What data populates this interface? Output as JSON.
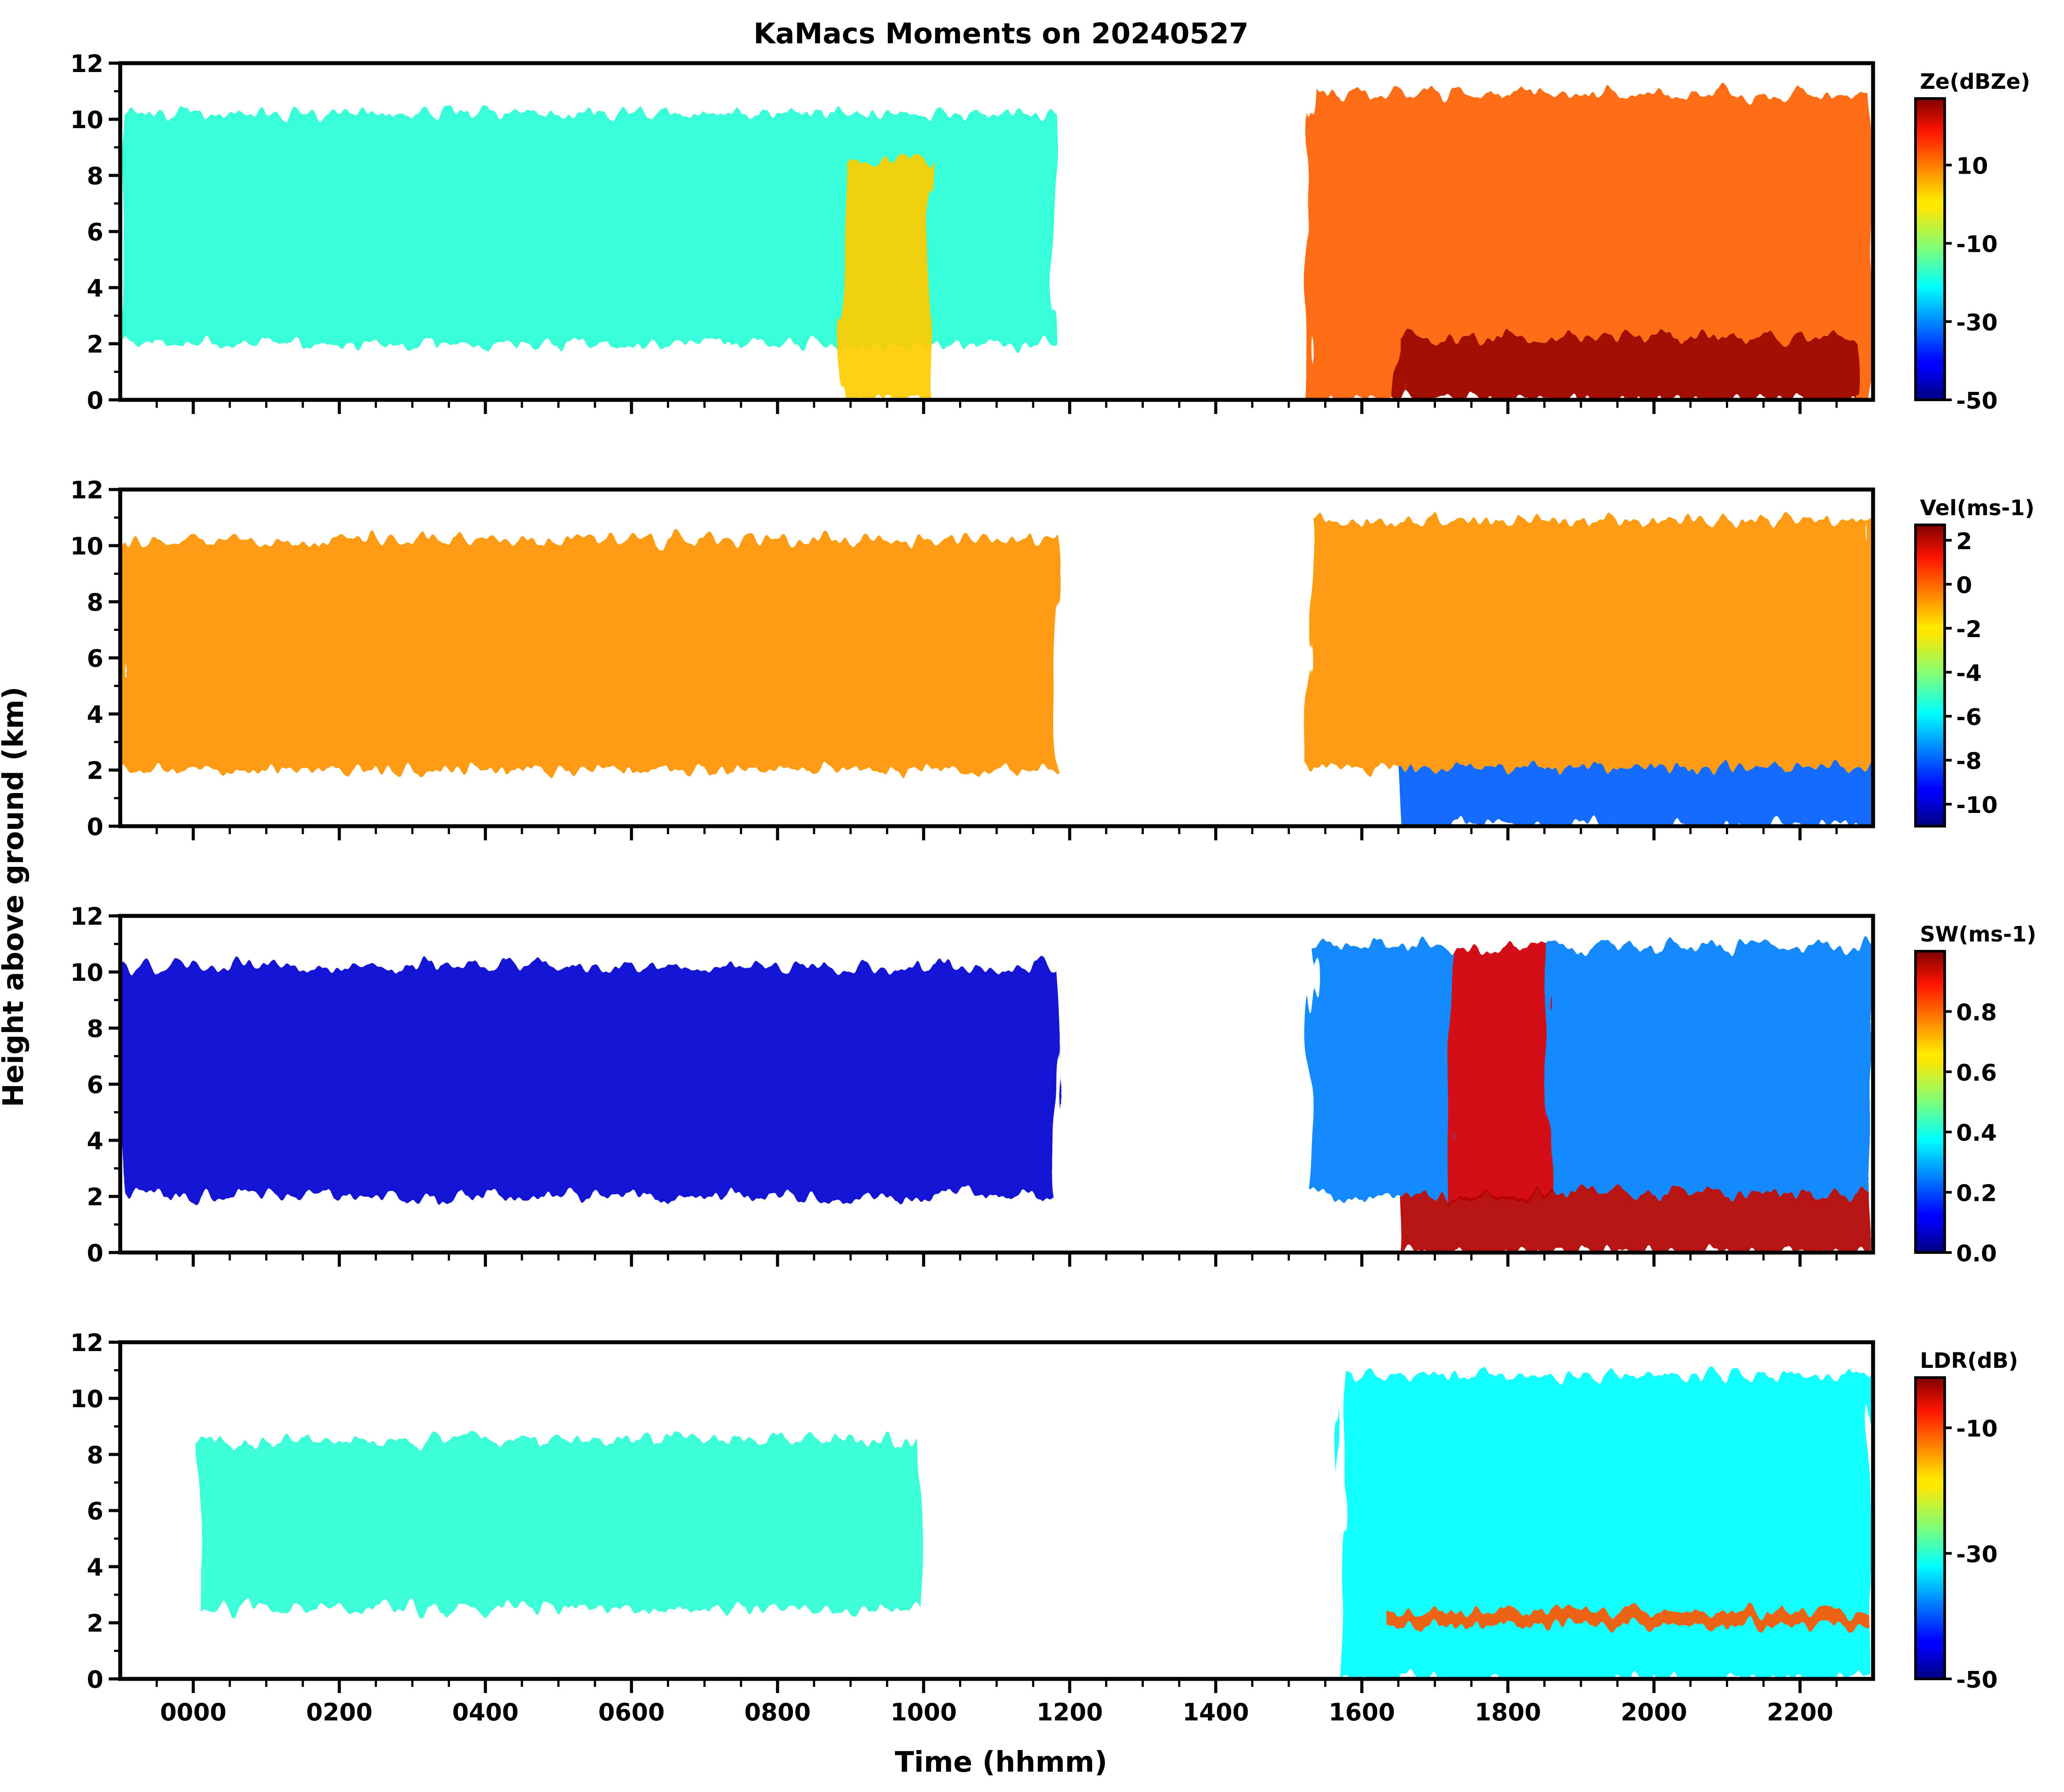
{
  "figure": {
    "title": "KaMacs Moments on 20240527",
    "ylabel": "Height above ground (km)",
    "xlabel": "Time (hhmm)"
  },
  "chart_data": {
    "type": "heatmap",
    "x_axis": {
      "unit": "hhmm",
      "range_hours": [
        -1.0,
        23.0
      ],
      "tick_labels": [
        "0000",
        "0200",
        "0400",
        "0600",
        "0800",
        "1000",
        "1200",
        "1400",
        "1600",
        "1800",
        "2000",
        "2200"
      ],
      "tick_values_hours": [
        0,
        2,
        4,
        6,
        8,
        10,
        12,
        14,
        16,
        18,
        20,
        22
      ]
    },
    "y_axis": {
      "range_km": [
        0,
        12
      ],
      "tick_values": [
        0,
        2,
        4,
        6,
        8,
        10,
        12
      ]
    },
    "colormap": "jet",
    "panels": [
      {
        "variable": "Ze",
        "colorbar_label": "Ze(dBZe)",
        "colorbar_range": [
          -50,
          27
        ],
        "colorbar_ticks": [
          -50,
          -30,
          -10,
          10
        ],
        "cloud_regions": [
          {
            "time_start": -1.0,
            "time_end": 11.8,
            "base_km": 2.0,
            "top_km": 10.2,
            "typical_value": -18
          },
          {
            "time_start": 8.9,
            "time_end": 10.1,
            "base_km": 0.0,
            "top_km": 8.5,
            "typical_value": 2
          },
          {
            "time_start": 15.3,
            "time_end": 23.0,
            "base_km": 0.0,
            "top_km": 10.9,
            "typical_value": 10
          },
          {
            "time_start": 16.5,
            "time_end": 22.8,
            "base_km": 0.0,
            "top_km": 2.2,
            "typical_value": 25
          }
        ]
      },
      {
        "variable": "Vel",
        "colorbar_label": "Vel(ms-1)",
        "colorbar_range": [
          -11,
          2.7
        ],
        "colorbar_ticks": [
          2,
          0,
          -2,
          -4,
          -6,
          -8,
          -10
        ],
        "cloud_regions": [
          {
            "time_start": -1.0,
            "time_end": 11.8,
            "base_km": 2.0,
            "top_km": 10.2,
            "typical_value": -1
          },
          {
            "time_start": 15.3,
            "time_end": 23.0,
            "base_km": 2.1,
            "top_km": 10.9,
            "typical_value": -1
          },
          {
            "time_start": 16.5,
            "time_end": 23.0,
            "base_km": 0.0,
            "top_km": 2.1,
            "typical_value": -8
          }
        ]
      },
      {
        "variable": "SW",
        "colorbar_label": "SW(ms-1)",
        "colorbar_range": [
          0.0,
          1.0
        ],
        "colorbar_ticks": [
          0.0,
          0.2,
          0.4,
          0.6,
          0.8
        ],
        "cloud_regions": [
          {
            "time_start": -1.0,
            "time_end": 11.8,
            "base_km": 2.0,
            "top_km": 10.2,
            "typical_value": 0.08
          },
          {
            "time_start": 15.3,
            "time_end": 23.0,
            "base_km": 2.1,
            "top_km": 10.9,
            "typical_value": 0.25
          },
          {
            "time_start": 17.2,
            "time_end": 18.6,
            "base_km": 2.0,
            "top_km": 10.9,
            "typical_value": 0.9
          },
          {
            "time_start": 16.5,
            "time_end": 23.0,
            "base_km": 0.0,
            "top_km": 2.1,
            "typical_value": 0.95
          }
        ]
      },
      {
        "variable": "LDR",
        "colorbar_label": "LDR(dB)",
        "colorbar_range": [
          -50,
          -2
        ],
        "colorbar_ticks": [
          -50,
          -30,
          -10
        ],
        "cloud_regions": [
          {
            "time_start": 0.1,
            "time_end": 10.0,
            "base_km": 2.5,
            "top_km": 8.5,
            "typical_value": -30
          },
          {
            "time_start": 15.7,
            "time_end": 23.0,
            "base_km": 0.0,
            "top_km": 10.8,
            "typical_value": -32
          },
          {
            "time_start": 16.3,
            "time_end": 23.0,
            "base_km": 1.9,
            "top_km": 2.4,
            "typical_value": -12
          }
        ]
      }
    ]
  }
}
